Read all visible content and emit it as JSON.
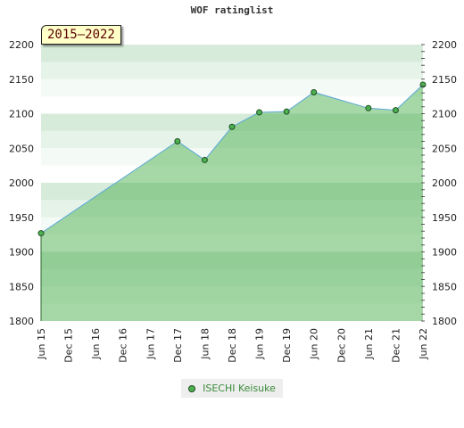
{
  "chart_data": {
    "type": "area",
    "title": "WOF ratinglist",
    "badge": "2015–2022",
    "categories": [
      "Jun 15",
      "Dec 15",
      "Jun 16",
      "Dec 16",
      "Jun 17",
      "Dec 17",
      "Jun 18",
      "Dec 18",
      "Jun 19",
      "Dec 19",
      "Jun 20",
      "Dec 20",
      "Jun 21",
      "Dec 21",
      "Jun 22"
    ],
    "y_ticks": [
      1800,
      1850,
      1900,
      1950,
      2000,
      2050,
      2100,
      2150,
      2200
    ],
    "ylim": [
      1800,
      2200
    ],
    "series": [
      {
        "name": "ISECHI Keisuke",
        "color": "#4caf50",
        "line_color": "#5aa8d8",
        "points": [
          {
            "x": "Jun 15",
            "y": 1927
          },
          {
            "x": "Dec 17",
            "y": 2060
          },
          {
            "x": "Jun 18",
            "y": 2033
          },
          {
            "x": "Dec 18",
            "y": 2081
          },
          {
            "x": "Jun 19",
            "y": 2102
          },
          {
            "x": "Dec 19",
            "y": 2103
          },
          {
            "x": "Jun 20",
            "y": 2131
          },
          {
            "x": "Jun 21",
            "y": 2108
          },
          {
            "x": "Dec 21",
            "y": 2105
          },
          {
            "x": "Jun 22",
            "y": 2142
          }
        ]
      }
    ],
    "grid": true,
    "legend_position": "bottom"
  }
}
